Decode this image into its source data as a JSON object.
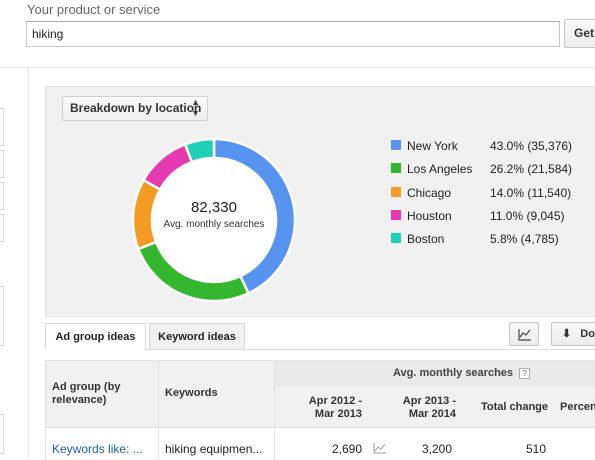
{
  "header": {
    "label": "Your product or service",
    "search_value": "hiking",
    "get_button": "Get"
  },
  "breakdown": {
    "selector_label": "Breakdown by location",
    "total": "82,330",
    "total_caption": "Avg. monthly searches",
    "locations": [
      {
        "name": "New York",
        "share": "43.0% (35,376)",
        "percent": 43.0,
        "color": "#5794f2"
      },
      {
        "name": "Los Angeles",
        "share": "26.2% (21,584)",
        "percent": 26.2,
        "color": "#33b72e"
      },
      {
        "name": "Chicago",
        "share": "14.0% (11,540)",
        "percent": 14.0,
        "color": "#f59a23"
      },
      {
        "name": "Houston",
        "share": "11.0% (9,045)",
        "percent": 11.0,
        "color": "#e63ab1"
      },
      {
        "name": "Boston",
        "share": "5.8% (4,785)",
        "percent": 5.8,
        "color": "#1fd1b4"
      }
    ]
  },
  "tabs": {
    "ad_group_ideas": "Ad group ideas",
    "keyword_ideas": "Keyword ideas",
    "download_label": "Do"
  },
  "table": {
    "group_header": "Avg. monthly searches",
    "help": "?",
    "col_ad_group": "Ad group (by relevance)",
    "col_keywords": "Keywords",
    "col_period1": "Apr 2012 - Mar 2013",
    "col_period2": "Apr 2013 - Mar 2014",
    "col_total_change": "Total change",
    "col_percent": "Percen",
    "rows": [
      {
        "ad_group": "Keywords like: ...",
        "keywords": "hiking equipmen...",
        "period1": "2,690",
        "period2": "3,200",
        "total_change": "510"
      }
    ]
  }
}
